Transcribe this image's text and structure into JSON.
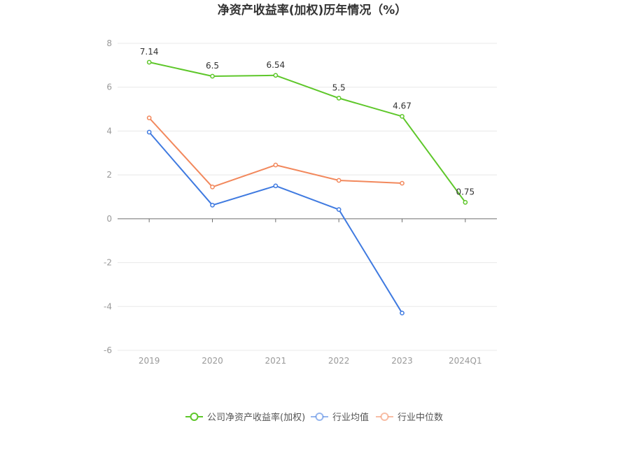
{
  "chart_data": {
    "type": "line",
    "title": "净资产收益率(加权)历年情况（%）",
    "categories": [
      "2019",
      "2020",
      "2021",
      "2022",
      "2023",
      "2024Q1"
    ],
    "ylim": [
      -6,
      8
    ],
    "yticks": [
      -6,
      -4,
      -2,
      0,
      2,
      4,
      6,
      8
    ],
    "grid": true,
    "legend_position": "bottom",
    "series": [
      {
        "name": "公司净资产收益率(加权)",
        "color": "#5ec72a",
        "values": [
          7.14,
          6.5,
          6.54,
          5.5,
          4.67,
          0.75
        ],
        "labels": [
          "7.14",
          "6.5",
          "6.54",
          "5.5",
          "4.67",
          "0.75"
        ]
      },
      {
        "name": "行业均值",
        "color": "#3f7ae0",
        "values": [
          3.95,
          0.62,
          1.5,
          0.42,
          -4.3,
          null
        ],
        "labels": null
      },
      {
        "name": "行业中位数",
        "color": "#f2885c",
        "values": [
          4.6,
          1.45,
          2.45,
          1.75,
          1.62,
          null
        ],
        "labels": null
      }
    ]
  }
}
